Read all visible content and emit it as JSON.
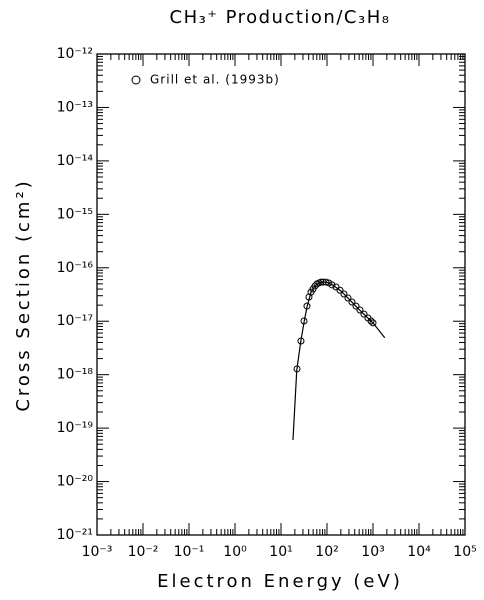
{
  "chart_data": {
    "type": "scatter",
    "title": "CH₃⁺ Production/C₃H₈",
    "x_label": "Electron Energy (eV)",
    "y_label": "Cross Section (cm²)",
    "xscale": "log",
    "yscale": "log",
    "xlim": [
      0.001,
      100000
    ],
    "ylim": [
      1e-21,
      1e-12
    ],
    "xticks": [
      {
        "value": 0.001,
        "label": "10⁻³"
      },
      {
        "value": 0.01,
        "label": "10⁻²"
      },
      {
        "value": 0.1,
        "label": "10⁻¹"
      },
      {
        "value": 1,
        "label": "10⁰"
      },
      {
        "value": 10,
        "label": "10¹"
      },
      {
        "value": 100,
        "label": "10²"
      },
      {
        "value": 1000,
        "label": "10³"
      },
      {
        "value": 10000,
        "label": "10⁴"
      },
      {
        "value": 100000,
        "label": "10⁵"
      }
    ],
    "yticks": [
      {
        "value": 1e-21,
        "label": "10⁻²¹"
      },
      {
        "value": 1e-20,
        "label": "10⁻²⁰"
      },
      {
        "value": 1e-19,
        "label": "10⁻¹⁹"
      },
      {
        "value": 1e-18,
        "label": "10⁻¹⁸"
      },
      {
        "value": 1e-17,
        "label": "10⁻¹⁷"
      },
      {
        "value": 1e-16,
        "label": "10⁻¹⁶"
      },
      {
        "value": 1e-15,
        "label": "10⁻¹⁵"
      },
      {
        "value": 1e-14,
        "label": "10⁻¹⁴"
      },
      {
        "value": 1e-13,
        "label": "10⁻¹³"
      },
      {
        "value": 1e-12,
        "label": "10⁻¹²"
      }
    ],
    "legend": "upper left",
    "series": [
      {
        "name": "Grill et al. (1993b)",
        "color": "#000000",
        "marker": "open-circle",
        "x": [
          22.3,
          27.2,
          31.6,
          36.7,
          40.6,
          44.9,
          49.6,
          54.8,
          60.6,
          67,
          74,
          81.9,
          95,
          110,
          128,
          157,
          192,
          234,
          286,
          349,
          427,
          521,
          637,
          778,
          905,
          1000
        ],
        "values": [
          1.28e-18,
          4.27e-18,
          1.01e-17,
          1.92e-17,
          2.84e-17,
          3.5e-17,
          4e-17,
          4.55e-17,
          5e-17,
          5.2e-17,
          5.4e-17,
          5.4e-17,
          5.4e-17,
          5.2e-17,
          4.8e-17,
          4.37e-17,
          3.8e-17,
          3.23e-17,
          2.72e-17,
          2.29e-17,
          1.92e-17,
          1.62e-17,
          1.36e-17,
          1.15e-17,
          1.01e-17,
          9.3e-18
        ]
      },
      {
        "style": "line",
        "color": "#000000",
        "x": [
          18.2,
          22,
          27,
          32,
          37,
          45,
          55,
          67,
          82,
          100,
          130,
          200,
          300,
          500,
          1000,
          1800
        ],
        "values": [
          6e-20,
          1.2e-18,
          4.3e-18,
          1e-17,
          1.9e-17,
          3.5e-17,
          4.6e-17,
          5.2e-17,
          5.4e-17,
          5.35e-17,
          4.8e-17,
          3.7e-17,
          2.6e-17,
          1.65e-17,
          9.3e-18,
          4.9e-18
        ]
      }
    ]
  }
}
